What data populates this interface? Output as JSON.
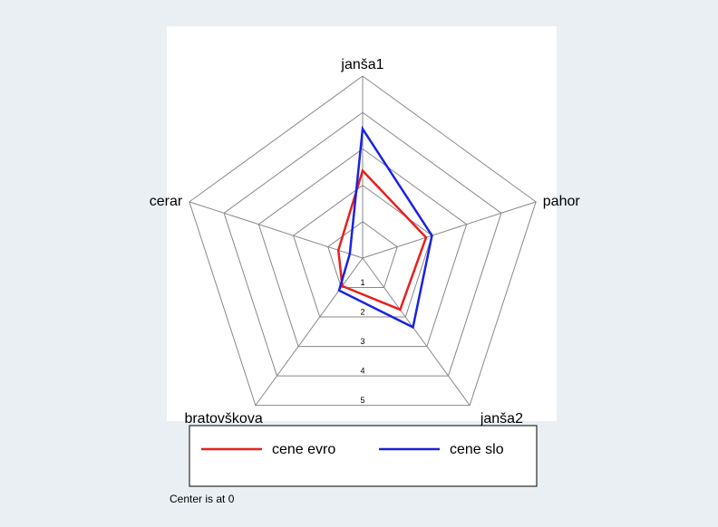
{
  "chart_data": {
    "type": "radar",
    "categories": [
      "janša1",
      "pahor",
      "janša2",
      "bratovškova",
      "cerar"
    ],
    "series": [
      {
        "name": "cene evro",
        "color": "#e8201e",
        "values": [
          2.4,
          1.83,
          1.75,
          0.95,
          0.7
        ]
      },
      {
        "name": "cene slo",
        "color": "#1a23e0",
        "values": [
          3.55,
          2.0,
          2.35,
          1.1,
          0.37
        ]
      }
    ],
    "ylim": [
      0,
      5
    ],
    "yticks": [
      1,
      2,
      3,
      4,
      5
    ],
    "note": "Center is at 0"
  }
}
